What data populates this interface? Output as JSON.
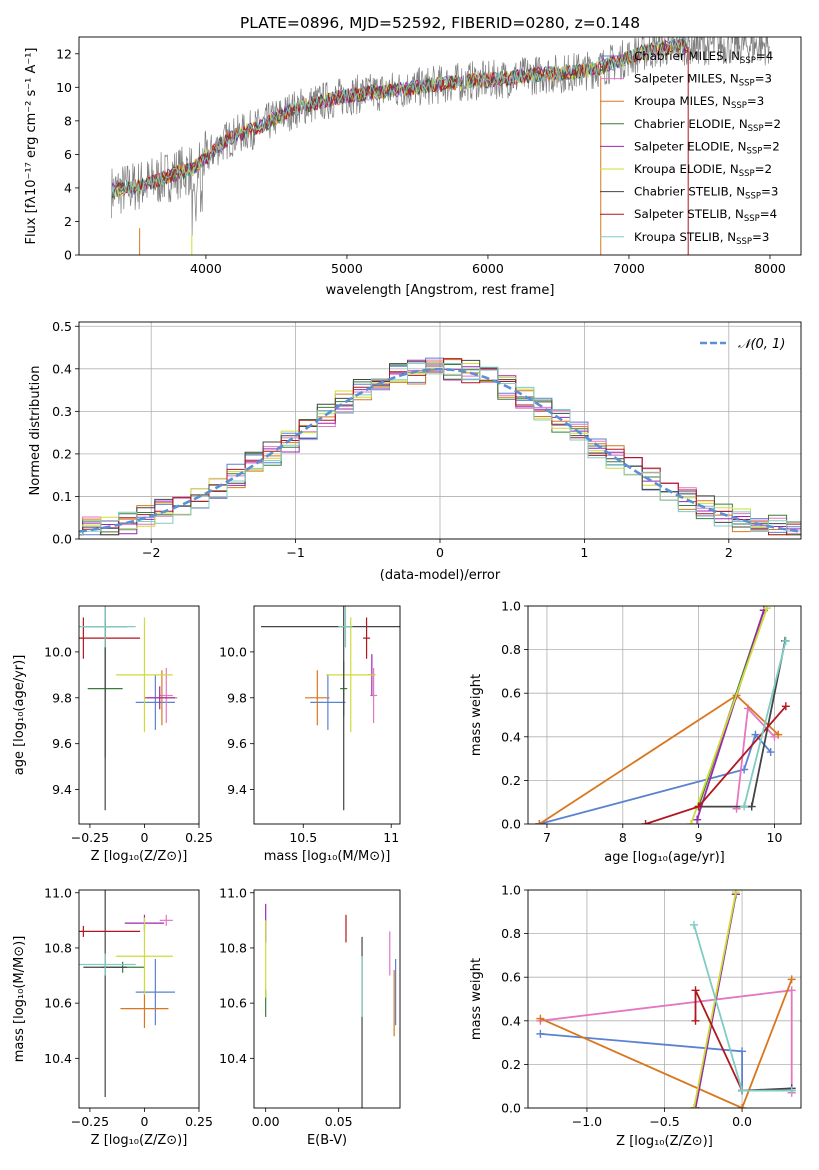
{
  "figure_title": "PLATE=0896, MJD=52592, FIBERID=0280, z=0.148",
  "colors": {
    "Chabrier MILES": "#5b82d0",
    "Salpeter MILES": "#e377c2",
    "Kroupa MILES": "#d9771f",
    "Chabrier ELODIE": "#3a7d3a",
    "Salpeter ELODIE": "#9c27b0",
    "Kroupa ELODIE": "#cddc39",
    "Chabrier STELIB": "#444444",
    "Salpeter STELIB": "#b0171f",
    "Kroupa STELIB": "#80cbc4",
    "data": "#7f7f7f",
    "gauss": "#5b8fd6"
  },
  "chart_data": [
    {
      "id": "spectrum",
      "type": "line",
      "title": "PLATE=0896, MJD=52592, FIBERID=0280, z=0.148",
      "xlabel": "wavelength [Angstrom, rest frame]",
      "ylabel": "Flux [fλ10⁻¹⁷ erg cm⁻² s⁻¹ A⁻¹]",
      "xlim": [
        3100,
        8220
      ],
      "ylim": [
        0,
        13
      ],
      "xticks": [
        4000,
        5000,
        6000,
        7000,
        8000
      ],
      "yticks": [
        0,
        2,
        4,
        6,
        8,
        10,
        12
      ],
      "legend_position": "upper right",
      "legend": [
        {
          "base": "Chabrier MILES, N",
          "sub": "SSP",
          "tail": "=4"
        },
        {
          "base": "Salpeter MILES, N",
          "sub": "SSP",
          "tail": "=3"
        },
        {
          "base": "Kroupa MILES, N",
          "sub": "SSP",
          "tail": "=3"
        },
        {
          "base": "Chabrier ELODIE, N",
          "sub": "SSP",
          "tail": "=2"
        },
        {
          "base": "Salpeter ELODIE, N",
          "sub": "SSP",
          "tail": "=2"
        },
        {
          "base": "Kroupa ELODIE, N",
          "sub": "SSP",
          "tail": "=2"
        },
        {
          "base": "Chabrier STELIB, N",
          "sub": "SSP",
          "tail": "=3"
        },
        {
          "base": "Salpeter STELIB, N",
          "sub": "SSP",
          "tail": "=4"
        },
        {
          "base": "Kroupa STELIB, N",
          "sub": "SSP",
          "tail": "=3"
        }
      ],
      "continuum": {
        "x": [
          3330,
          3400,
          3500,
          3600,
          3700,
          3800,
          3900,
          4000,
          4100,
          4200,
          4300,
          4400,
          4500,
          4600,
          4700,
          4800,
          4900,
          5000,
          5100,
          5200,
          5300,
          5400,
          5500,
          5600,
          5700,
          5800,
          5900,
          6000,
          6100,
          6200,
          6300,
          6400,
          6500,
          6600,
          6700,
          6800,
          6900,
          7000,
          7100,
          7200,
          7300,
          7400
        ],
        "y": [
          3.8,
          3.9,
          4.1,
          4.3,
          4.6,
          4.9,
          5.1,
          5.8,
          6.6,
          7.1,
          7.4,
          7.7,
          8.2,
          8.6,
          8.9,
          9.1,
          9.3,
          9.5,
          9.6,
          9.7,
          9.8,
          9.9,
          10.0,
          10.1,
          10.2,
          10.3,
          10.4,
          10.4,
          10.5,
          10.6,
          10.7,
          10.8,
          10.8,
          10.9,
          11.0,
          11.2,
          11.5,
          11.8,
          12.1,
          12.3,
          12.4,
          12.5
        ]
      }
    },
    {
      "id": "residuals",
      "type": "histogram",
      "xlabel": "(data-model)/error",
      "ylabel": "Normed distribution",
      "xlim": [
        -2.5,
        2.5
      ],
      "ylim": [
        0,
        0.51
      ],
      "xticks": [
        -2,
        -1,
        0,
        1,
        2
      ],
      "yticks": [
        0.0,
        0.1,
        0.2,
        0.3,
        0.4,
        0.5
      ],
      "grid": true,
      "legend_position": "upper right",
      "legend": [
        "𝒩(0, 1)"
      ],
      "bin_width": 0.125,
      "gaussian": {
        "mean": 0,
        "sigma": 1
      }
    },
    {
      "id": "age_vs_Z",
      "type": "errorbar",
      "xlabel": "Z [log₁₀(Z/Z⊙)]",
      "ylabel": "age  [log₁₀(age/yr)]",
      "xlim": [
        -0.3,
        0.25
      ],
      "ylim": [
        9.25,
        10.2
      ],
      "xticks": [
        -0.25,
        0.0,
        0.25
      ],
      "yticks": [
        9.4,
        9.6,
        9.8,
        10.0
      ],
      "points": [
        {
          "model": "Chabrier MILES",
          "x": 0.05,
          "y": 9.78,
          "xerr": 0.09,
          "yerr": 0.12
        },
        {
          "model": "Salpeter MILES",
          "x": 0.1,
          "y": 9.81,
          "xerr": 0.03,
          "yerr": 0.12
        },
        {
          "model": "Kroupa MILES",
          "x": 0.08,
          "y": 9.8,
          "xerr": 0.07,
          "yerr": 0.12
        },
        {
          "model": "Chabrier ELODIE",
          "x": -0.18,
          "y": 9.84,
          "xerr": 0.08,
          "yerr": 0.3
        },
        {
          "model": "Salpeter ELODIE",
          "x": 0.07,
          "y": 9.8,
          "xerr": 0.07,
          "yerr": 0.05
        },
        {
          "model": "Kroupa ELODIE",
          "x": 0.0,
          "y": 9.9,
          "xerr": 0.13,
          "yerr": 0.25
        },
        {
          "model": "Chabrier STELIB",
          "x": -0.18,
          "y": 10.11,
          "xerr": 0.1,
          "yerr": 0.8
        },
        {
          "model": "Salpeter STELIB",
          "x": -0.28,
          "y": 10.06,
          "xerr": 0.26,
          "yerr": 0.09
        },
        {
          "model": "Kroupa STELIB",
          "x": -0.18,
          "y": 10.11,
          "xerr": 0.14,
          "yerr": 0.09
        }
      ]
    },
    {
      "id": "age_vs_mass",
      "type": "errorbar",
      "xlabel": "mass [log₁₀(M/M⊙)]",
      "ylabel": "",
      "xlim": [
        10.22,
        11.05
      ],
      "ylim": [
        9.25,
        10.2
      ],
      "xticks": [
        10.5,
        11.0
      ],
      "yticks": [
        9.4,
        9.6,
        9.8,
        10.0
      ],
      "points": [
        {
          "model": "Chabrier MILES",
          "x": 10.64,
          "y": 9.78,
          "xerr": 0.1,
          "yerr": 0.12
        },
        {
          "model": "Salpeter MILES",
          "x": 10.9,
          "y": 9.81,
          "xerr": 0.02,
          "yerr": 0.12
        },
        {
          "model": "Kroupa MILES",
          "x": 10.58,
          "y": 9.8,
          "xerr": 0.07,
          "yerr": 0.12
        },
        {
          "model": "Chabrier ELODIE",
          "x": 10.73,
          "y": 9.84,
          "xerr": 0.02,
          "yerr": 0.12
        },
        {
          "model": "Salpeter ELODIE",
          "x": 10.89,
          "y": 9.9,
          "xerr": 0.02,
          "yerr": 0.09
        },
        {
          "model": "Kroupa ELODIE",
          "x": 10.77,
          "y": 9.9,
          "xerr": 0.14,
          "yerr": 0.25
        },
        {
          "model": "Chabrier STELIB",
          "x": 10.73,
          "y": 10.11,
          "xerr": 0.47,
          "yerr": 0.8
        },
        {
          "model": "Salpeter STELIB",
          "x": 10.86,
          "y": 10.06,
          "xerr": 0.02,
          "yerr": 0.09
        },
        {
          "model": "Kroupa STELIB",
          "x": 10.74,
          "y": 10.11,
          "xerr": 0.04,
          "yerr": 0.09
        }
      ]
    },
    {
      "id": "weight_vs_age",
      "type": "line",
      "xlabel": "age  [log₁₀(age/yr)]",
      "ylabel": "mass weight",
      "xlim": [
        6.75,
        10.35
      ],
      "ylim": [
        0,
        1.0
      ],
      "xticks": [
        7,
        8,
        9,
        10
      ],
      "yticks": [
        0.0,
        0.2,
        0.4,
        0.6,
        0.8,
        1.0
      ],
      "grid": true,
      "series": [
        {
          "model": "Chabrier MILES",
          "x": [
            6.9,
            9.6,
            9.75,
            9.95
          ],
          "y": [
            0.0,
            0.25,
            0.41,
            0.33
          ]
        },
        {
          "model": "Salpeter MILES",
          "x": [
            9.5,
            9.65,
            10.0
          ],
          "y": [
            0.07,
            0.53,
            0.4
          ]
        },
        {
          "model": "Kroupa MILES",
          "x": [
            6.9,
            9.5,
            10.05
          ],
          "y": [
            0.0,
            0.59,
            0.41
          ]
        },
        {
          "model": "Chabrier ELODIE",
          "x": [
            9.0,
            9.86
          ],
          "y": [
            0.08,
            0.98
          ]
        },
        {
          "model": "Salpeter ELODIE",
          "x": [
            8.98,
            9.86
          ],
          "y": [
            0.02,
            0.98
          ]
        },
        {
          "model": "Kroupa ELODIE",
          "x": [
            8.9,
            9.9
          ],
          "y": [
            0.0,
            0.99
          ]
        },
        {
          "model": "Chabrier STELIB",
          "x": [
            9.0,
            9.7,
            10.14
          ],
          "y": [
            0.08,
            0.08,
            0.84
          ]
        },
        {
          "model": "Salpeter STELIB",
          "x": [
            8.3,
            9.0,
            10.15
          ],
          "y": [
            0.0,
            0.08,
            0.54
          ]
        },
        {
          "model": "Kroupa STELIB",
          "x": [
            9.6,
            10.15
          ],
          "y": [
            0.08,
            0.84
          ]
        }
      ]
    },
    {
      "id": "mass_vs_Z",
      "type": "errorbar",
      "xlabel": "Z [log₁₀(Z/Z⊙)]",
      "ylabel": "mass [log₁₀(M/M⊙)]",
      "xlim": [
        -0.3,
        0.25
      ],
      "ylim": [
        10.22,
        11.01
      ],
      "xticks": [
        -0.25,
        0.0,
        0.25
      ],
      "yticks": [
        10.4,
        10.6,
        10.8,
        11.0
      ],
      "points": [
        {
          "model": "Chabrier MILES",
          "x": 0.05,
          "y": 10.64,
          "xerr": 0.09,
          "yerr": 0.12
        },
        {
          "model": "Salpeter MILES",
          "x": 0.1,
          "y": 10.9,
          "xerr": 0.03,
          "yerr": 0.02
        },
        {
          "model": "Kroupa MILES",
          "x": 0.0,
          "y": 10.58,
          "xerr": 0.11,
          "yerr": 0.07
        },
        {
          "model": "Chabrier ELODIE",
          "x": -0.1,
          "y": 10.73,
          "xerr": 0.1,
          "yerr": 0.02
        },
        {
          "model": "Salpeter ELODIE",
          "x": 0.0,
          "y": 10.89,
          "xerr": 0.09,
          "yerr": 0.03
        },
        {
          "model": "Kroupa ELODIE",
          "x": 0.0,
          "y": 10.77,
          "xerr": 0.13,
          "yerr": 0.14
        },
        {
          "model": "Chabrier STELIB",
          "x": -0.18,
          "y": 10.73,
          "xerr": 0.1,
          "yerr": 0.47
        },
        {
          "model": "Salpeter STELIB",
          "x": -0.28,
          "y": 10.86,
          "xerr": 0.26,
          "yerr": 0.02
        },
        {
          "model": "Kroupa STELIB",
          "x": -0.18,
          "y": 10.74,
          "xerr": 0.14,
          "yerr": 0.04
        }
      ]
    },
    {
      "id": "mass_vs_ebv",
      "type": "errorbar",
      "xlabel": "E(B-V)",
      "ylabel": "",
      "xlim": [
        -0.008,
        0.092
      ],
      "ylim": [
        10.22,
        11.01
      ],
      "xticks": [
        0.0,
        0.05
      ],
      "xtick_labels": [
        "0.00",
        "0.05"
      ],
      "yticks": [
        10.4,
        10.6,
        10.8,
        11.0
      ],
      "points": [
        {
          "model": "Chabrier MILES",
          "x": 0.089,
          "y": 10.64,
          "xerr": 0.0,
          "yerr": 0.12
        },
        {
          "model": "Salpeter MILES",
          "x": 0.085,
          "y": 10.78,
          "xerr": 0.0,
          "yerr": 0.08
        },
        {
          "model": "Kroupa MILES",
          "x": 0.088,
          "y": 10.6,
          "xerr": 0.0,
          "yerr": 0.12
        },
        {
          "model": "Chabrier ELODIE",
          "x": 0.0,
          "y": 10.6,
          "xerr": 0.0,
          "yerr": 0.05
        },
        {
          "model": "Salpeter ELODIE",
          "x": 0.0,
          "y": 10.89,
          "xerr": 0.0,
          "yerr": 0.07
        },
        {
          "model": "Kroupa ELODIE",
          "x": 0.0,
          "y": 10.76,
          "xerr": 0.0,
          "yerr": 0.14
        },
        {
          "model": "Chabrier STELIB",
          "x": 0.066,
          "y": 10.47,
          "xerr": 0.0,
          "yerr": 0.37
        },
        {
          "model": "Salpeter STELIB",
          "x": 0.055,
          "y": 10.87,
          "xerr": 0.0,
          "yerr": 0.05
        },
        {
          "model": "Kroupa STELIB",
          "x": 0.066,
          "y": 10.66,
          "xerr": 0.0,
          "yerr": 0.11
        }
      ]
    },
    {
      "id": "weight_vs_Z",
      "type": "line",
      "xlabel": "Z [log₁₀(Z/Z⊙)]",
      "ylabel": "mass weight",
      "xlim": [
        -1.38,
        0.38
      ],
      "ylim": [
        0,
        1.0
      ],
      "xticks": [
        -1.0,
        -0.5,
        0.0
      ],
      "xtick_labels": [
        "−1.0",
        "−0.5",
        "0.0"
      ],
      "yticks": [
        0.0,
        0.2,
        0.4,
        0.6,
        0.8,
        1.0
      ],
      "grid": true,
      "series": [
        {
          "model": "Chabrier MILES",
          "x": [
            -1.3,
            0.0,
            0.0,
            0.32
          ],
          "y": [
            0.34,
            0.26,
            0.08,
            0.08
          ]
        },
        {
          "model": "Salpeter MILES",
          "x": [
            -1.3,
            0.32,
            0.32
          ],
          "y": [
            0.4,
            0.54,
            0.07
          ]
        },
        {
          "model": "Kroupa MILES",
          "x": [
            -1.3,
            0.0,
            0.32
          ],
          "y": [
            0.41,
            0.0,
            0.59
          ]
        },
        {
          "model": "Chabrier ELODIE",
          "x": [
            -0.3,
            -0.04
          ],
          "y": [
            0.0,
            0.98
          ]
        },
        {
          "model": "Salpeter ELODIE",
          "x": [
            -0.3,
            -0.04
          ],
          "y": [
            0.0,
            0.98
          ]
        },
        {
          "model": "Kroupa ELODIE",
          "x": [
            -0.31,
            -0.04
          ],
          "y": [
            0.0,
            0.99
          ]
        },
        {
          "model": "Chabrier STELIB",
          "x": [
            0.0,
            0.32
          ],
          "y": [
            0.08,
            0.09
          ]
        },
        {
          "model": "Salpeter STELIB",
          "x": [
            -0.3,
            -0.3,
            0.0
          ],
          "y": [
            0.4,
            0.54,
            0.08
          ]
        },
        {
          "model": "Kroupa STELIB",
          "x": [
            -0.31,
            0.0,
            0.32
          ],
          "y": [
            0.84,
            0.08,
            0.08
          ]
        }
      ]
    }
  ]
}
